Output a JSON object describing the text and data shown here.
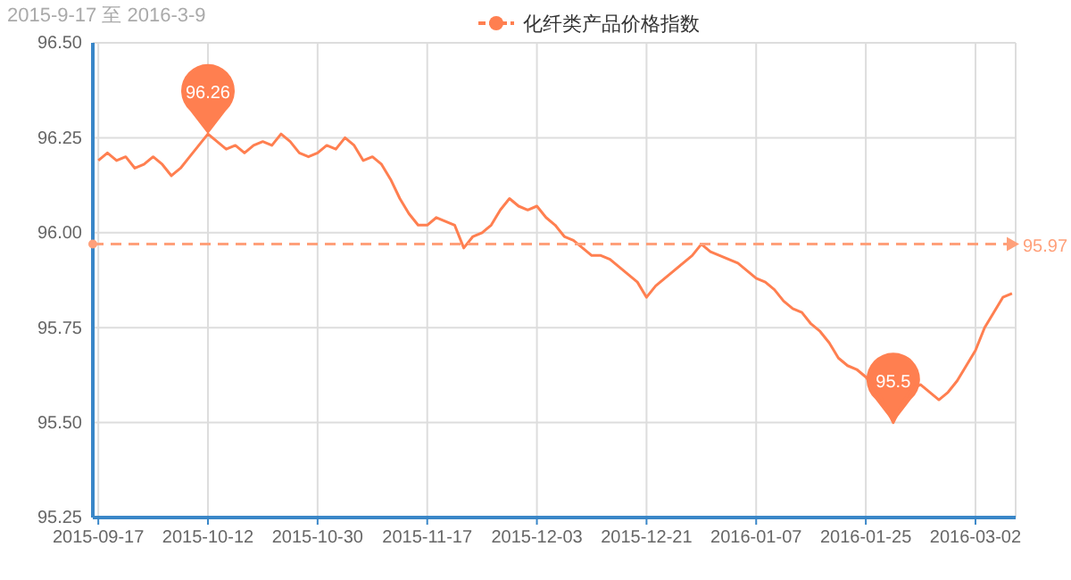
{
  "chart_data": {
    "type": "line",
    "title": "2015-9-17 至 2016-3-9",
    "categories": [
      "2015-09-17",
      null,
      null,
      null,
      null,
      null,
      null,
      null,
      null,
      null,
      null,
      null,
      "2015-10-12",
      null,
      null,
      null,
      null,
      null,
      null,
      null,
      null,
      null,
      null,
      null,
      "2015-10-30",
      null,
      null,
      null,
      null,
      null,
      null,
      null,
      null,
      null,
      null,
      null,
      "2015-11-17",
      null,
      null,
      null,
      null,
      null,
      null,
      null,
      null,
      null,
      null,
      null,
      "2015-12-03",
      null,
      null,
      null,
      null,
      null,
      null,
      null,
      null,
      null,
      null,
      null,
      "2015-12-21",
      null,
      null,
      null,
      null,
      null,
      null,
      null,
      null,
      null,
      null,
      null,
      "2016-01-07",
      null,
      null,
      null,
      null,
      null,
      null,
      null,
      null,
      null,
      null,
      null,
      "2016-01-25",
      null,
      null,
      null,
      null,
      null,
      null,
      null,
      null,
      null,
      null,
      null,
      "2016-03-02",
      null,
      null,
      null,
      null
    ],
    "series": [
      {
        "name": "化纤类产品价格指数",
        "color": "#ff7f50",
        "values": [
          96.19,
          96.21,
          96.19,
          96.2,
          96.17,
          96.18,
          96.2,
          96.18,
          96.15,
          96.17,
          96.2,
          96.23,
          96.26,
          96.24,
          96.22,
          96.23,
          96.21,
          96.23,
          96.24,
          96.23,
          96.26,
          96.24,
          96.21,
          96.2,
          96.21,
          96.23,
          96.22,
          96.25,
          96.23,
          96.19,
          96.2,
          96.18,
          96.14,
          96.09,
          96.05,
          96.02,
          96.02,
          96.04,
          96.03,
          96.02,
          95.96,
          95.99,
          96.0,
          96.02,
          96.06,
          96.09,
          96.07,
          96.06,
          96.07,
          96.04,
          96.02,
          95.99,
          95.98,
          95.96,
          95.94,
          95.94,
          95.93,
          95.91,
          95.89,
          95.87,
          95.83,
          95.86,
          95.88,
          95.9,
          95.92,
          95.94,
          95.97,
          95.95,
          95.94,
          95.93,
          95.92,
          95.9,
          95.88,
          95.87,
          95.85,
          95.82,
          95.8,
          95.79,
          95.76,
          95.74,
          95.71,
          95.67,
          95.65,
          95.64,
          95.62,
          95.59,
          95.55,
          95.5,
          95.55,
          95.59,
          95.6,
          95.58,
          95.56,
          95.58,
          95.61,
          95.65,
          95.69,
          95.75,
          95.79,
          95.83,
          95.84
        ]
      }
    ],
    "ylim": [
      95.25,
      96.5
    ],
    "yticks": [
      {
        "value": 95.25,
        "label": "95.25"
      },
      {
        "value": 95.5,
        "label": "95.50"
      },
      {
        "value": 95.75,
        "label": "95.75"
      },
      {
        "value": 96,
        "label": "96.00"
      },
      {
        "value": 96.25,
        "label": "96.25"
      },
      {
        "value": 96.5,
        "label": "96.50"
      }
    ],
    "ref_lines": [
      {
        "axis": "y",
        "value": 95.97,
        "label": "95.97",
        "color": "#ffa07a",
        "line_style": "dashed"
      }
    ],
    "annotations": [
      {
        "text": "96.26",
        "x": "2015-10-12",
        "y": 96.26
      },
      {
        "text": "95.5",
        "y": 95.5
      }
    ],
    "grid": true,
    "legend": "top",
    "marker": "none",
    "line_style": "solid"
  }
}
